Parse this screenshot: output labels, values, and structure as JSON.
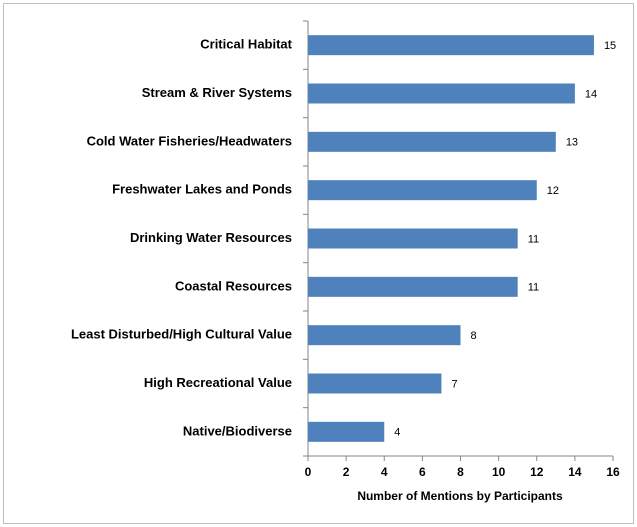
{
  "chart_data": {
    "type": "bar",
    "orientation": "horizontal",
    "categories": [
      "Critical Habitat",
      "Stream & River Systems",
      "Cold Water Fisheries/Headwaters",
      "Freshwater Lakes and Ponds",
      "Drinking Water Resources",
      "Coastal Resources",
      "Least Disturbed/High Cultural Value",
      "High Recreational Value",
      "Native/Biodiverse"
    ],
    "values": [
      15,
      14,
      13,
      12,
      11,
      11,
      8,
      7,
      4
    ],
    "color": "#4f81bd",
    "x_label": "Number of Mentions by Participants",
    "xlim": [
      0,
      16
    ],
    "xticks": [
      0,
      2,
      4,
      6,
      8,
      10,
      12,
      14,
      16
    ],
    "grid": false
  }
}
